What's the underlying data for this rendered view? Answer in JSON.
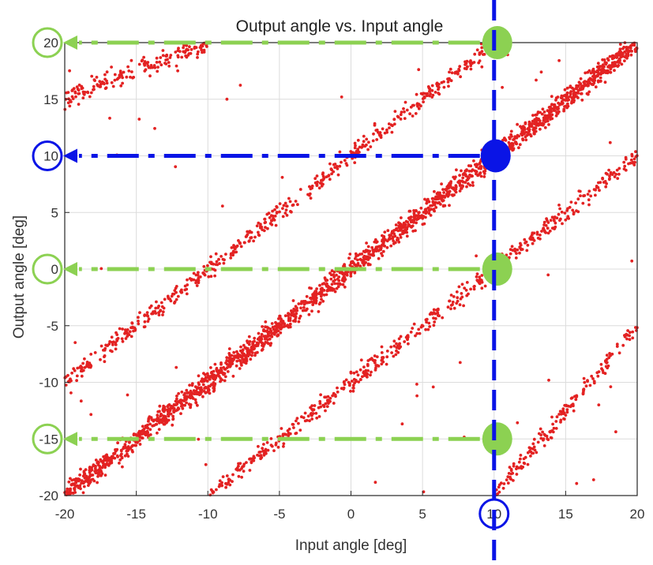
{
  "chart_data": {
    "type": "scatter",
    "title": "Output angle vs. Input angle",
    "xlabel": "Input angle [deg]",
    "ylabel": "Output angle [deg]",
    "xlim": [
      -20,
      20
    ],
    "ylim": [
      -20,
      20
    ],
    "xticks": [
      -20,
      -15,
      -10,
      -5,
      0,
      5,
      10,
      15,
      20
    ],
    "yticks": [
      -20,
      -15,
      -10,
      -5,
      0,
      5,
      10,
      15,
      20
    ],
    "xtick_labels": [
      "-20",
      "-15",
      "-10",
      "-5",
      "0",
      "5",
      "10",
      "15",
      "20"
    ],
    "ytick_labels": [
      "-20",
      "-15",
      "-10",
      "-5",
      "0",
      "5",
      "10",
      "15",
      "20"
    ],
    "grid": true,
    "series": [
      {
        "color": "#e32222",
        "bands": [
          {
            "label": "main diagonal",
            "x_range": [
              -20,
              20
            ],
            "y_at_x_start": -20,
            "y_at_x_end": 20,
            "density": "high"
          },
          {
            "label": "upper alias",
            "x_range": [
              -20,
              10
            ],
            "y_at_x_start": -10,
            "y_at_x_end": 20,
            "density": "medium"
          },
          {
            "label": "top alias",
            "x_range": [
              -20,
              -10
            ],
            "y_at_x_start": 15,
            "y_at_x_end": 20,
            "density": "low"
          },
          {
            "label": "lower alias",
            "x_range": [
              -10,
              20
            ],
            "y_at_x_start": -20,
            "y_at_x_end": 10,
            "density": "medium"
          },
          {
            "label": "bottom alias",
            "x_range": [
              10,
              20
            ],
            "y_at_x_start": -20,
            "y_at_x_end": -5,
            "density": "low"
          }
        ]
      }
    ],
    "annotations": {
      "vertical_marker": {
        "x": 10,
        "color": "#0a14e6",
        "style": "dashed"
      },
      "blue_marker": {
        "x": 10,
        "y": 10,
        "color": "#0a14e6"
      },
      "green_markers": [
        {
          "x": 10,
          "y": 20
        },
        {
          "x": 10,
          "y": 0
        },
        {
          "x": 10,
          "y": -15
        }
      ],
      "green_color": "#8cd152",
      "circled_x_tick": "10",
      "circled_y_ticks_blue": [
        "10"
      ],
      "circled_y_ticks_green": [
        "20",
        "0",
        "-15"
      ]
    }
  }
}
